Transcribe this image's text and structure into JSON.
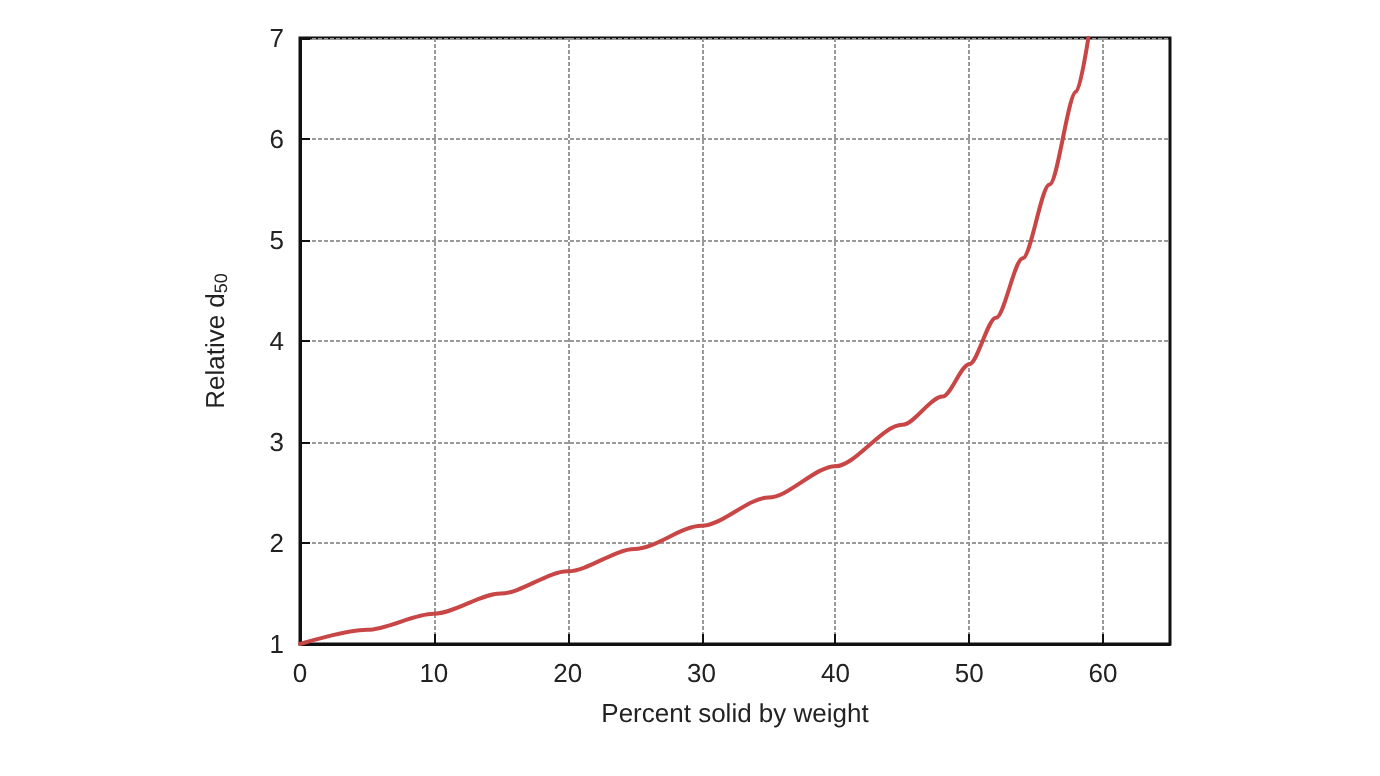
{
  "chart_data": {
    "type": "line",
    "xlabel": "Percent solid by weight",
    "ylabel": "Relative d$_{50}$",
    "x": [
      0,
      5,
      10,
      15,
      20,
      25,
      30,
      35,
      40,
      45,
      48,
      50,
      52,
      54,
      56,
      58,
      58.9
    ],
    "series": [
      {
        "color": "#c84646",
        "values": [
          1,
          1.14,
          1.3,
          1.5,
          1.72,
          1.94,
          2.17,
          2.45,
          2.76,
          3.17,
          3.45,
          3.77,
          4.23,
          4.82,
          5.55,
          6.47,
          7
        ]
      }
    ],
    "xlim": [
      0,
      65
    ],
    "xticks": [
      0,
      10,
      20,
      30,
      40,
      50,
      60
    ],
    "ylim": [
      1,
      7
    ],
    "yticks": [
      1,
      2,
      3,
      4,
      5,
      6,
      7
    ],
    "grid": true,
    "marker": "none",
    "line_style": "solid"
  }
}
